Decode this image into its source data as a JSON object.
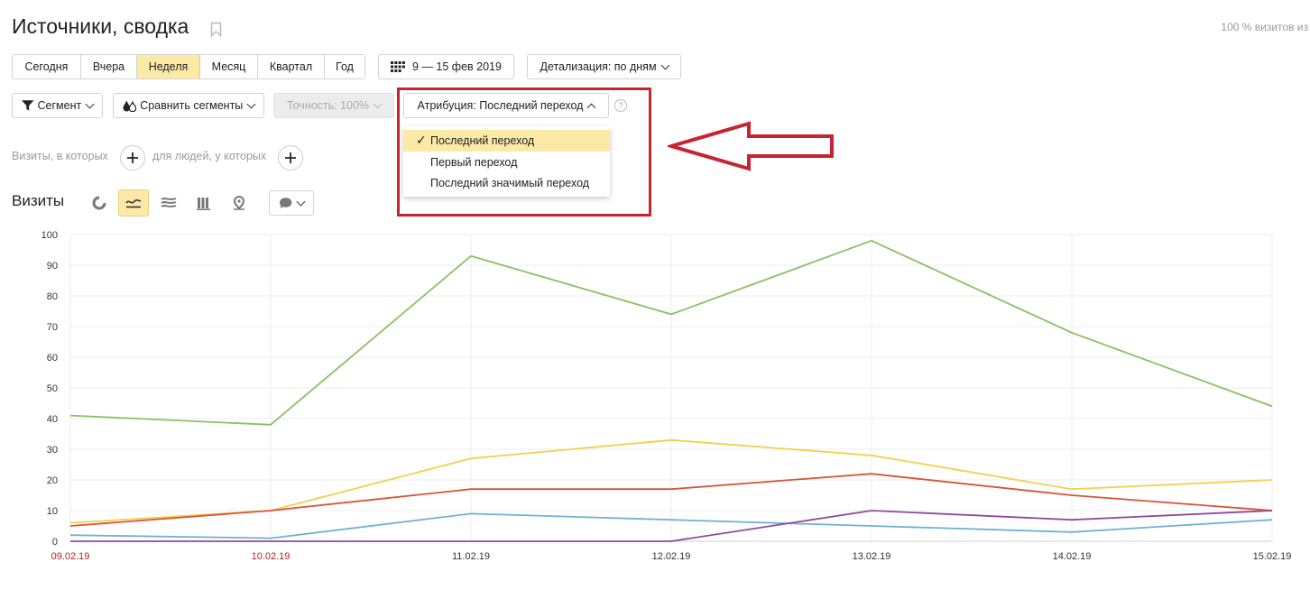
{
  "header": {
    "title": "Источники, сводка",
    "share_note": "100 % визитов из"
  },
  "period": {
    "buttons": [
      {
        "label": "Сегодня",
        "active": false
      },
      {
        "label": "Вчера",
        "active": false
      },
      {
        "label": "Неделя",
        "active": true
      },
      {
        "label": "Месяц",
        "active": false
      },
      {
        "label": "Квартал",
        "active": false
      },
      {
        "label": "Год",
        "active": false
      }
    ],
    "date_range": "9 — 15 фев 2019",
    "detail": "Детализация: по дням"
  },
  "toolbar": {
    "segment": "Сегмент",
    "compare": "Сравнить сегменты",
    "accuracy": "Точность: 100%",
    "attribution": "Атрибуция: Последний переход",
    "help": "?"
  },
  "attribution_menu": {
    "items": [
      {
        "label": "Последний переход",
        "selected": true
      },
      {
        "label": "Первый переход",
        "selected": false
      },
      {
        "label": "Последний значимый переход",
        "selected": false
      }
    ],
    "check_glyph": "✓"
  },
  "filters": {
    "visits_where": "Визиты, в которых",
    "people_where": "для людей, у которых"
  },
  "visits_section": {
    "label": "Визиты",
    "views": [
      "pie-icon",
      "line-icon",
      "area-icon",
      "bar-icon",
      "map-icon"
    ],
    "active_view": 1
  },
  "colors": {
    "accent": "#fde9a6",
    "annotation": "#c8242f",
    "weekend_label": "#b22222",
    "series": [
      "#8cc063",
      "#f2d04d",
      "#d9533a",
      "#71b1d1",
      "#8f4a9c"
    ]
  },
  "chart_data": {
    "type": "line",
    "categories": [
      "09.02.19",
      "10.02.19",
      "11.02.19",
      "12.02.19",
      "13.02.19",
      "14.02.19",
      "15.02.19"
    ],
    "weekend_categories": [
      "09.02.19",
      "10.02.19"
    ],
    "ylim": [
      0,
      100
    ],
    "yticks": [
      0,
      10,
      20,
      30,
      40,
      50,
      60,
      70,
      80,
      90,
      100
    ],
    "grid": true,
    "series": [
      {
        "color": "#8cc063",
        "values": [
          41,
          38,
          93,
          74,
          98,
          68,
          44
        ]
      },
      {
        "color": "#f2d04d",
        "values": [
          6,
          10,
          27,
          33,
          28,
          17,
          20
        ]
      },
      {
        "color": "#d9533a",
        "values": [
          5,
          10,
          17,
          17,
          22,
          15,
          10
        ]
      },
      {
        "color": "#71b1d1",
        "values": [
          2,
          1,
          9,
          7,
          5,
          3,
          7
        ]
      },
      {
        "color": "#8f4a9c",
        "values": [
          0,
          0,
          0,
          0,
          10,
          7,
          10
        ]
      }
    ]
  }
}
